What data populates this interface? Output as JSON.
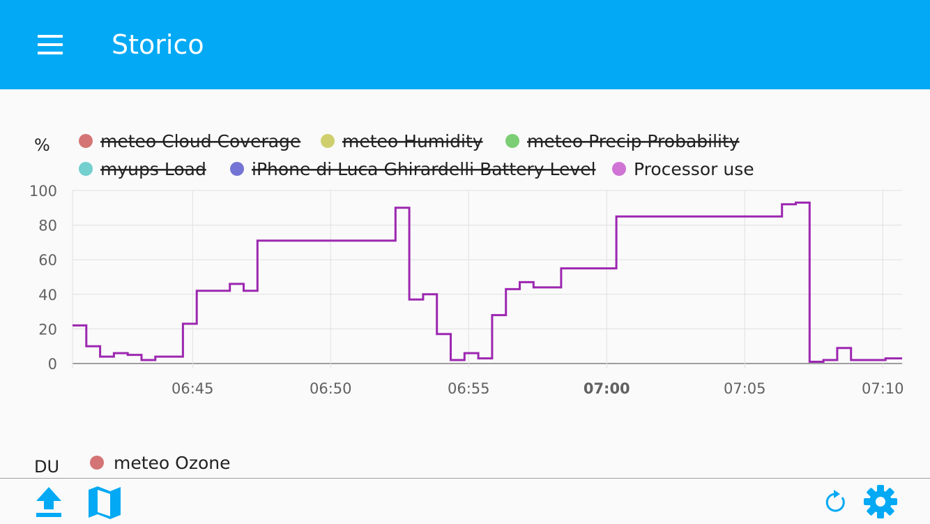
{
  "toolbar": {
    "title": "Storico",
    "menu_icon": "menu-icon"
  },
  "colors": {
    "primary": "#03a9f4",
    "processor_line": "#9c27b0"
  },
  "chart_data": [
    {
      "type": "line",
      "ylabel": "%",
      "ylim": [
        0,
        100
      ],
      "yticks": [
        "0",
        "20",
        "40",
        "60",
        "80",
        "100"
      ],
      "xticks": [
        "06:45",
        "06:50",
        "06:55",
        "07:00",
        "07:05",
        "07:10"
      ],
      "xtick_values": [
        45,
        50,
        55,
        60,
        65,
        70
      ],
      "xlim": [
        40.65,
        70.7
      ],
      "legend": [
        {
          "label": "meteo Cloud Coverage",
          "color": "#d47474",
          "hidden": true
        },
        {
          "label": "meteo Humidity",
          "color": "#cfcf6e",
          "hidden": true
        },
        {
          "label": "meteo Precip Probability",
          "color": "#7cce74",
          "hidden": true
        },
        {
          "label": "myups Load",
          "color": "#74cfcf",
          "hidden": true
        },
        {
          "label": "iPhone di Luca Ghirardelli Battery Level",
          "color": "#7474d4",
          "hidden": true
        },
        {
          "label": "Processor use",
          "color": "#cf74d4",
          "hidden": false
        }
      ],
      "series": [
        {
          "name": "Processor use",
          "step": true,
          "x": [
            40.65,
            41.15,
            41.65,
            42.15,
            42.65,
            43.15,
            43.65,
            44.65,
            45.15,
            46.35,
            46.85,
            47.35,
            52.35,
            52.85,
            53.35,
            53.85,
            54.35,
            54.85,
            55.35,
            55.85,
            56.35,
            56.85,
            57.35,
            58.35,
            59.85,
            60.35,
            66.35,
            66.85,
            67.35,
            67.85,
            68.35,
            68.85,
            70.1,
            70.7
          ],
          "y": [
            22,
            10,
            4,
            6,
            5,
            2,
            4,
            23,
            42,
            46,
            42,
            71,
            90,
            37,
            40,
            17,
            2,
            6,
            3,
            28,
            43,
            47,
            44,
            55,
            55,
            85,
            92,
            93,
            1,
            2,
            9,
            2,
            3,
            3
          ]
        }
      ]
    },
    {
      "type": "line",
      "ylabel": "DU",
      "legend": [
        {
          "label": "meteo Ozone",
          "color": "#d47474",
          "hidden": false
        }
      ]
    }
  ],
  "bottom_bar": {
    "left": [
      "upload-icon",
      "map-icon"
    ],
    "right": [
      "refresh-icon",
      "settings-icon"
    ]
  }
}
